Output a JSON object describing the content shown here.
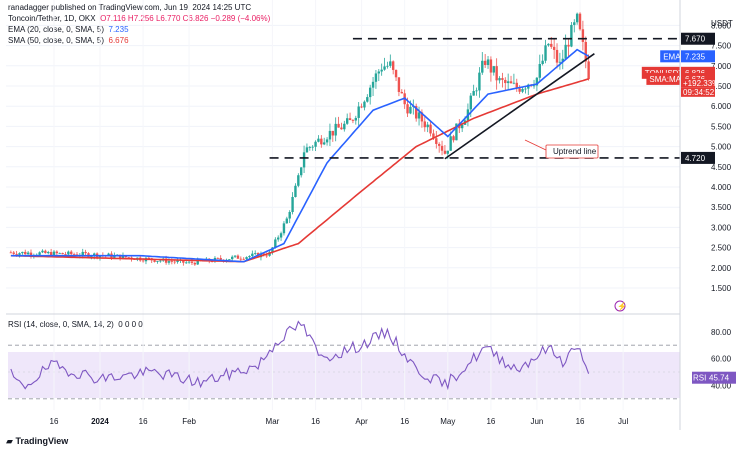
{
  "header": {
    "publisher": "ranadagger published on TradingView.com, Jun 19, 2024 14:25 UTC",
    "symbol": "Toncoin/Tether, 1D, OKX",
    "ohlc": "O7.116  H7.256  L6.770  C6.826  −0.289 (−4.06%)",
    "ema": "EMA (20, close, 0, SMA, 5)",
    "ema_value": "7.235",
    "sma": "SMA (50, close, 0, SMA, 5)",
    "sma_value": "6.676",
    "rsi": "RSI (14, close, 0, SMA, 14, 2)",
    "rsi_values": "0 0 0 0"
  },
  "price_axis": {
    "currency": "USDT",
    "ticks": [
      "8.000",
      "7.500",
      "7.000",
      "6.500",
      "6.000",
      "5.500",
      "5.000",
      "4.500",
      "4.000",
      "3.500",
      "3.000",
      "2.500",
      "2.000",
      "1.500"
    ],
    "tags": [
      {
        "label": "7.670",
        "value": 7.67,
        "color": "#131722"
      },
      {
        "label": "7.235",
        "value": 7.235,
        "color": "#2962ff",
        "prefix": "EMA"
      },
      {
        "label": "6.826",
        "value": 6.826,
        "color": "#e53935",
        "prefix": "TONUSDT"
      },
      {
        "label": "6.676",
        "value": 6.676,
        "color": "#e53935",
        "prefix": "SMA:MA"
      },
      {
        "label": "4.720",
        "value": 4.72,
        "color": "#131722"
      }
    ],
    "extra_labels": [
      "+192.33%",
      "09:34:52"
    ]
  },
  "rsi_axis": {
    "ticks": [
      "80.00",
      "60.00",
      "40.00"
    ],
    "tag_prefix": "RSI",
    "tag_value": "45.74"
  },
  "x_axis": {
    "labels": [
      "16",
      "2024",
      "16",
      "Feb",
      "Mar",
      "16",
      "Apr",
      "16",
      "May",
      "16",
      "Jun",
      "16",
      "Jul"
    ]
  },
  "annotations": {
    "uptrend_label": "Uptrend line"
  },
  "brand": {
    "logo_text": "TradingView"
  },
  "chart_data": {
    "type": "candlestick",
    "interval": "1D",
    "levels": {
      "resistance": 7.67,
      "support": 4.72
    },
    "ylim": [
      1.5,
      8.3
    ],
    "rsi_ylim": [
      28,
      92
    ],
    "rsi_bands": [
      30,
      70
    ],
    "anchors": [
      {
        "date": "2023-12-01",
        "close": 2.38
      },
      {
        "date": "2024-01-01",
        "close": 2.32
      },
      {
        "date": "2024-02-01",
        "close": 2.12
      },
      {
        "date": "2024-02-29",
        "close": 2.35
      },
      {
        "date": "2024-03-06",
        "close": 3.2
      },
      {
        "date": "2024-03-10",
        "close": 4.2
      },
      {
        "date": "2024-03-12",
        "close": 4.9
      },
      {
        "date": "2024-03-20",
        "close": 5.3
      },
      {
        "date": "2024-03-28",
        "close": 5.6
      },
      {
        "date": "2024-04-08",
        "close": 7.0
      },
      {
        "date": "2024-04-11",
        "close": 7.0
      },
      {
        "date": "2024-04-16",
        "close": 6.05
      },
      {
        "date": "2024-04-25",
        "close": 5.45
      },
      {
        "date": "2024-04-30",
        "close": 4.85
      },
      {
        "date": "2024-05-03",
        "close": 5.3
      },
      {
        "date": "2024-05-08",
        "close": 5.9
      },
      {
        "date": "2024-05-14",
        "close": 7.15
      },
      {
        "date": "2024-05-19",
        "close": 6.6
      },
      {
        "date": "2024-05-25",
        "close": 6.45
      },
      {
        "date": "2024-06-01",
        "close": 6.7
      },
      {
        "date": "2024-06-05",
        "close": 7.55
      },
      {
        "date": "2024-06-09",
        "close": 7.0
      },
      {
        "date": "2024-06-12",
        "close": 7.65
      },
      {
        "date": "2024-06-15",
        "close": 8.1
      },
      {
        "date": "2024-06-18",
        "close": 7.12
      },
      {
        "date": "2024-06-19",
        "close": 6.826
      }
    ],
    "ema20_anchors": [
      {
        "date": "2023-12-01",
        "value": 2.3
      },
      {
        "date": "2024-01-15",
        "value": 2.3
      },
      {
        "date": "2024-02-20",
        "value": 2.15
      },
      {
        "date": "2024-03-05",
        "value": 2.6
      },
      {
        "date": "2024-03-20",
        "value": 4.6
      },
      {
        "date": "2024-04-05",
        "value": 5.9
      },
      {
        "date": "2024-04-16",
        "value": 6.2
      },
      {
        "date": "2024-05-01",
        "value": 5.25
      },
      {
        "date": "2024-05-15",
        "value": 6.3
      },
      {
        "date": "2024-06-01",
        "value": 6.55
      },
      {
        "date": "2024-06-15",
        "value": 7.4
      },
      {
        "date": "2024-06-19",
        "value": 7.235
      }
    ],
    "sma50_anchors": [
      {
        "date": "2023-12-01",
        "value": 2.3
      },
      {
        "date": "2024-02-20",
        "value": 2.15
      },
      {
        "date": "2024-03-10",
        "value": 2.6
      },
      {
        "date": "2024-04-01",
        "value": 3.9
      },
      {
        "date": "2024-04-20",
        "value": 5.0
      },
      {
        "date": "2024-05-10",
        "value": 5.7
      },
      {
        "date": "2024-06-01",
        "value": 6.3
      },
      {
        "date": "2024-06-19",
        "value": 6.676
      }
    ],
    "uptrend_line": [
      {
        "date": "2024-04-30",
        "value": 4.7
      },
      {
        "date": "2024-06-21",
        "value": 7.3
      }
    ],
    "rsi_anchors": [
      {
        "date": "2023-12-01",
        "value": 48
      },
      {
        "date": "2023-12-05",
        "value": 38
      },
      {
        "date": "2023-12-15",
        "value": 55
      },
      {
        "date": "2024-01-01",
        "value": 45
      },
      {
        "date": "2024-01-20",
        "value": 50
      },
      {
        "date": "2024-02-05",
        "value": 42
      },
      {
        "date": "2024-02-25",
        "value": 55
      },
      {
        "date": "2024-03-03",
        "value": 74
      },
      {
        "date": "2024-03-11",
        "value": 86
      },
      {
        "date": "2024-03-18",
        "value": 60
      },
      {
        "date": "2024-04-01",
        "value": 70
      },
      {
        "date": "2024-04-10",
        "value": 80
      },
      {
        "date": "2024-04-20",
        "value": 52
      },
      {
        "date": "2024-04-30",
        "value": 40
      },
      {
        "date": "2024-05-14",
        "value": 68
      },
      {
        "date": "2024-05-25",
        "value": 52
      },
      {
        "date": "2024-06-05",
        "value": 68
      },
      {
        "date": "2024-06-10",
        "value": 58
      },
      {
        "date": "2024-06-15",
        "value": 70
      },
      {
        "date": "2024-06-19",
        "value": 45.74
      }
    ]
  }
}
